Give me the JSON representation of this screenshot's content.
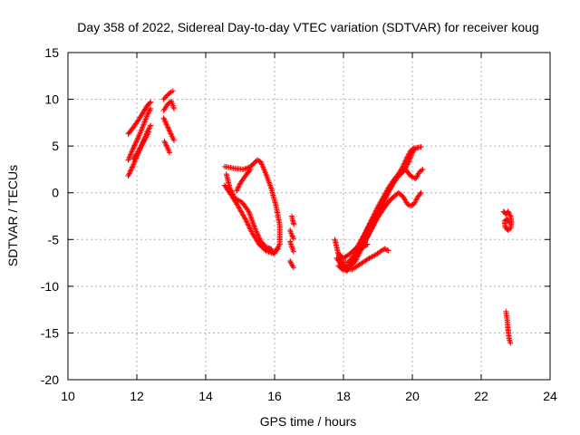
{
  "chart_data": {
    "type": "scatter",
    "title": "Day 358 of 2022, Sidereal Day-to-day VTEC variation (SDTVAR) for receiver koug",
    "xlabel": "GPS time / hours",
    "ylabel": "SDTVAR / TECUs",
    "xlim": [
      10,
      24
    ],
    "ylim": [
      -20,
      15
    ],
    "xticks": [
      10,
      12,
      14,
      16,
      18,
      20,
      22,
      24
    ],
    "yticks": [
      -20,
      -15,
      -10,
      -5,
      0,
      5,
      10,
      15
    ],
    "grid": true,
    "marker": "plus",
    "color": "#ff0000",
    "tracks": [
      [
        [
          11.75,
          6.3
        ],
        [
          11.9,
          7.0
        ],
        [
          12.05,
          7.8
        ],
        [
          12.2,
          8.7
        ],
        [
          12.3,
          9.3
        ],
        [
          12.4,
          9.7
        ]
      ],
      [
        [
          11.75,
          3.5
        ],
        [
          11.9,
          4.8
        ],
        [
          12.05,
          6.0
        ],
        [
          12.2,
          7.3
        ],
        [
          12.3,
          8.3
        ],
        [
          12.4,
          9.0
        ]
      ],
      [
        [
          11.75,
          1.8
        ],
        [
          11.9,
          3.0
        ],
        [
          12.05,
          4.3
        ],
        [
          12.2,
          5.6
        ],
        [
          12.3,
          6.5
        ],
        [
          12.4,
          7.2
        ]
      ],
      [
        [
          11.9,
          3.6
        ],
        [
          12.05,
          4.5
        ],
        [
          12.2,
          5.5
        ],
        [
          12.35,
          6.5
        ]
      ],
      [
        [
          12.78,
          10.0
        ],
        [
          12.9,
          10.5
        ],
        [
          13.0,
          10.8
        ],
        [
          13.05,
          10.9
        ]
      ],
      [
        [
          12.78,
          8.8
        ],
        [
          12.9,
          9.5
        ],
        [
          13.0,
          9.8
        ],
        [
          13.08,
          9.0
        ]
      ],
      [
        [
          12.78,
          8.0
        ],
        [
          12.9,
          7.0
        ],
        [
          13.0,
          6.2
        ],
        [
          13.08,
          5.6
        ]
      ],
      [
        [
          12.8,
          5.5
        ],
        [
          12.88,
          4.9
        ],
        [
          12.95,
          4.3
        ]
      ],
      [
        [
          14.55,
          2.8
        ],
        [
          14.85,
          2.6
        ],
        [
          15.1,
          2.5
        ],
        [
          15.3,
          2.8
        ],
        [
          15.5,
          3.5
        ],
        [
          15.6,
          3.3
        ],
        [
          15.75,
          2.0
        ],
        [
          15.9,
          0.5
        ],
        [
          16.05,
          -1.5
        ],
        [
          16.15,
          -3.5
        ],
        [
          16.15,
          -5.5
        ],
        [
          16.0,
          -6.5
        ],
        [
          15.85,
          -6.0
        ]
      ],
      [
        [
          14.55,
          0.8
        ],
        [
          14.75,
          -0.3
        ],
        [
          14.95,
          -1.5
        ],
        [
          15.15,
          -2.8
        ],
        [
          15.35,
          -4.3
        ],
        [
          15.55,
          -5.5
        ],
        [
          15.75,
          -6.2
        ],
        [
          15.95,
          -6.5
        ],
        [
          16.1,
          -6.0
        ]
      ],
      [
        [
          14.6,
          2.0
        ],
        [
          14.7,
          0.5
        ],
        [
          14.85,
          -0.6
        ],
        [
          15.05,
          -1.0
        ],
        [
          15.25,
          -2.0
        ],
        [
          15.45,
          -4.0
        ],
        [
          15.6,
          -5.2
        ],
        [
          15.75,
          -5.8
        ],
        [
          15.9,
          -6.0
        ]
      ],
      [
        [
          15.3,
          2.5
        ],
        [
          15.15,
          1.8
        ],
        [
          15.0,
          1.0
        ],
        [
          14.9,
          0.2
        ]
      ],
      [
        [
          16.5,
          -2.5
        ],
        [
          16.53,
          -3.0
        ],
        [
          16.56,
          -3.4
        ]
      ],
      [
        [
          16.45,
          -4.0
        ],
        [
          16.5,
          -4.5
        ],
        [
          16.55,
          -4.9
        ]
      ],
      [
        [
          16.45,
          -5.2
        ],
        [
          16.5,
          -5.8
        ],
        [
          16.55,
          -6.3
        ]
      ],
      [
        [
          16.45,
          -7.3
        ],
        [
          16.5,
          -7.7
        ],
        [
          16.55,
          -8.0
        ]
      ],
      [
        [
          17.75,
          -5.0
        ],
        [
          17.85,
          -6.5
        ],
        [
          17.95,
          -7.5
        ],
        [
          18.05,
          -8.0
        ],
        [
          18.2,
          -7.6
        ],
        [
          18.4,
          -6.5
        ],
        [
          18.6,
          -5.3
        ],
        [
          18.8,
          -4.0
        ],
        [
          19.0,
          -2.6
        ],
        [
          19.2,
          -1.5
        ],
        [
          19.35,
          -0.8
        ],
        [
          19.5,
          -0.3
        ],
        [
          19.6,
          0.0
        ],
        [
          19.75,
          -0.5
        ],
        [
          19.85,
          -1.2
        ],
        [
          19.95,
          -1.4
        ],
        [
          20.05,
          -1.2
        ],
        [
          20.15,
          -0.5
        ],
        [
          20.25,
          0.0
        ]
      ],
      [
        [
          17.85,
          -7.8
        ],
        [
          18.0,
          -8.3
        ],
        [
          18.15,
          -8.0
        ],
        [
          18.35,
          -7.3
        ],
        [
          18.55,
          -5.8
        ],
        [
          18.75,
          -4.3
        ],
        [
          18.95,
          -2.8
        ],
        [
          19.15,
          -1.3
        ],
        [
          19.3,
          0.0
        ],
        [
          19.45,
          1.0
        ],
        [
          19.6,
          1.8
        ],
        [
          19.75,
          2.3
        ],
        [
          19.9,
          3.3
        ],
        [
          20.0,
          4.3
        ],
        [
          20.1,
          4.8
        ],
        [
          20.25,
          4.9
        ]
      ],
      [
        [
          17.95,
          -7.5
        ],
        [
          18.15,
          -7.4
        ],
        [
          18.35,
          -6.5
        ],
        [
          18.55,
          -5.0
        ],
        [
          18.75,
          -3.5
        ],
        [
          18.95,
          -2.2
        ],
        [
          19.15,
          -0.8
        ],
        [
          19.35,
          0.5
        ],
        [
          19.5,
          1.5
        ],
        [
          19.65,
          2.3
        ],
        [
          19.8,
          2.5
        ],
        [
          19.95,
          1.8
        ],
        [
          20.1,
          1.5
        ],
        [
          20.2,
          2.2
        ],
        [
          20.3,
          2.5
        ]
      ],
      [
        [
          17.85,
          -6.5
        ],
        [
          18.0,
          -7.0
        ],
        [
          18.2,
          -6.5
        ],
        [
          18.4,
          -5.8
        ],
        [
          18.6,
          -4.5
        ],
        [
          18.8,
          -3.0
        ],
        [
          19.0,
          -1.5
        ],
        [
          19.15,
          -0.5
        ],
        [
          19.3,
          0.5
        ],
        [
          19.45,
          1.3
        ],
        [
          19.6,
          2.0
        ],
        [
          19.75,
          3.0
        ],
        [
          19.85,
          3.8
        ],
        [
          19.95,
          4.5
        ],
        [
          20.05,
          4.8
        ]
      ],
      [
        [
          18.0,
          -8.0
        ],
        [
          18.25,
          -8.2
        ],
        [
          18.5,
          -7.6
        ],
        [
          18.75,
          -7.0
        ],
        [
          18.95,
          -6.6
        ],
        [
          19.1,
          -6.2
        ],
        [
          19.2,
          -6.0
        ],
        [
          19.3,
          -6.2
        ]
      ],
      [
        [
          17.8,
          -7.0
        ],
        [
          17.95,
          -7.8
        ],
        [
          18.1,
          -8.4
        ],
        [
          18.3,
          -7.0
        ],
        [
          18.5,
          -6.0
        ],
        [
          18.7,
          -5.5
        ]
      ],
      [
        [
          22.65,
          -2.0
        ],
        [
          22.72,
          -2.3
        ],
        [
          22.78,
          -2.0
        ],
        [
          22.85,
          -2.5
        ],
        [
          22.88,
          -3.2
        ],
        [
          22.85,
          -3.8
        ],
        [
          22.78,
          -4.0
        ],
        [
          22.7,
          -3.7
        ],
        [
          22.68,
          -3.0
        ],
        [
          22.75,
          -2.8
        ],
        [
          22.82,
          -3.2
        ]
      ],
      [
        [
          22.72,
          -12.7
        ],
        [
          22.75,
          -13.5
        ],
        [
          22.77,
          -14.3
        ],
        [
          22.79,
          -15.0
        ],
        [
          22.81,
          -15.6
        ],
        [
          22.85,
          -16.1
        ]
      ]
    ]
  }
}
